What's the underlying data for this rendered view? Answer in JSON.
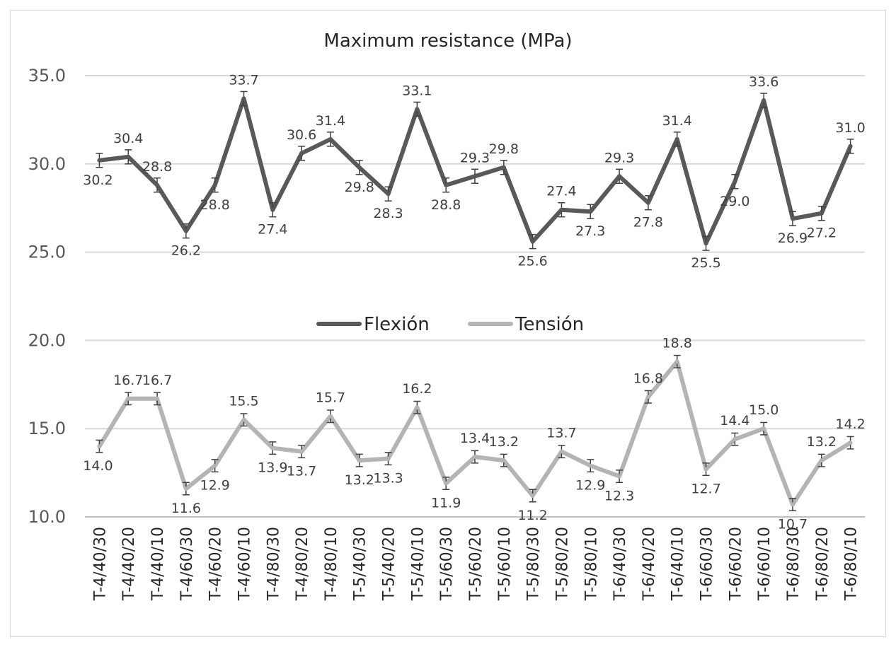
{
  "chart_data": {
    "type": "line",
    "title": "Maximum resistance (MPa)",
    "xlabel": "",
    "ylabel": "",
    "ylim": [
      10.0,
      35.0
    ],
    "yticks": [
      "10.0",
      "15.0",
      "20.0",
      "25.0",
      "30.0",
      "35.0"
    ],
    "grid": true,
    "legend_position": "center",
    "error_bars": true,
    "categories": [
      "T-4/40/30",
      "T-4/40/20",
      "T-4/40/10",
      "T-4/60/30",
      "T-4/60/20",
      "T-4/60/10",
      "T-4/80/30",
      "T-4/80/20",
      "T-4/80/10",
      "T-5/40/30",
      "T-5/40/20",
      "T-5/40/10",
      "T-5/60/30",
      "T-5/60/20",
      "T-5/60/10",
      "T-5/80/30",
      "T-5/80/20",
      "T-5/80/10",
      "T-6/40/30",
      "T-6/40/20",
      "T-6/40/10",
      "T-6/60/30",
      "T-6/60/20",
      "T-6/60/10",
      "T-6/80/30",
      "T-6/80/20",
      "T-6/80/10"
    ],
    "series": [
      {
        "name": "Flexión",
        "color": "#595959",
        "values": [
          30.2,
          30.4,
          28.8,
          26.2,
          28.8,
          33.7,
          27.4,
          30.6,
          31.4,
          29.8,
          28.3,
          33.1,
          28.8,
          29.3,
          29.8,
          25.6,
          27.4,
          27.3,
          29.3,
          27.8,
          31.4,
          25.5,
          29.0,
          33.6,
          26.9,
          27.2,
          31.0
        ],
        "labels": [
          "30.2",
          "30.4",
          "28.8",
          "26.2",
          "28.8",
          "33.7",
          "27.4",
          "30.6",
          "31.4",
          "29.8",
          "28.3",
          "33.1",
          "28.8",
          "29.3",
          "29.8",
          "25.6",
          "27.4",
          "27.3",
          "29.3",
          "27.8",
          "31.4",
          "25.5",
          "29.0",
          "33.6",
          "26.9",
          "27.2",
          "31.0"
        ],
        "errors": [
          0.4,
          0.4,
          0.4,
          0.4,
          0.4,
          0.4,
          0.4,
          0.4,
          0.4,
          0.4,
          0.4,
          0.4,
          0.4,
          0.4,
          0.4,
          0.4,
          0.4,
          0.4,
          0.4,
          0.4,
          0.4,
          0.4,
          0.4,
          0.4,
          0.4,
          0.4,
          0.4
        ]
      },
      {
        "name": "Tensión",
        "color": "#b4b4b4",
        "values": [
          14.0,
          16.7,
          16.7,
          11.6,
          12.9,
          15.5,
          13.9,
          13.7,
          15.7,
          13.2,
          13.3,
          16.2,
          11.9,
          13.4,
          13.2,
          11.2,
          13.7,
          12.9,
          12.3,
          16.8,
          18.8,
          12.7,
          14.4,
          15.0,
          10.7,
          13.2,
          14.2
        ],
        "labels": [
          "14.0",
          "16.7",
          "16.7",
          "11.6",
          "12.9",
          "15.5",
          "13.9",
          "13.7",
          "15.7",
          "13.2",
          "13.3",
          "16.2",
          "11.9",
          "13.4",
          "13.2",
          "11.2",
          "13.7",
          "12.9",
          "12.3",
          "16.8",
          "18.8",
          "12.7",
          "14.4",
          "15.0",
          "10.7",
          "13.2",
          "14.2"
        ],
        "errors": [
          0.35,
          0.35,
          0.35,
          0.35,
          0.35,
          0.35,
          0.35,
          0.35,
          0.35,
          0.35,
          0.35,
          0.35,
          0.35,
          0.35,
          0.35,
          0.35,
          0.35,
          0.35,
          0.35,
          0.35,
          0.35,
          0.35,
          0.35,
          0.35,
          0.35,
          0.35,
          0.35
        ]
      }
    ]
  }
}
